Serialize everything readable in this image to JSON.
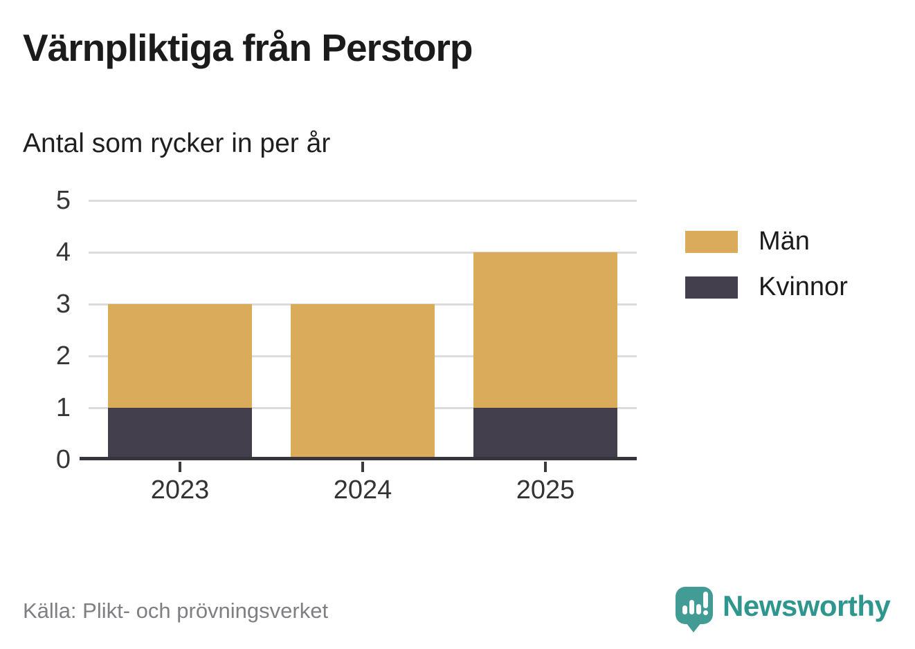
{
  "chart_data": {
    "type": "bar",
    "stacked": true,
    "title": "Värnpliktiga från Perstorp",
    "subtitle": "Antal som rycker in per år",
    "categories": [
      "2023",
      "2024",
      "2025"
    ],
    "series": [
      {
        "name": "Män",
        "color": "#daab5a",
        "values": [
          2,
          3,
          3
        ]
      },
      {
        "name": "Kvinnor",
        "color": "#433f4d",
        "values": [
          1,
          0,
          1
        ]
      }
    ],
    "stack_order_bottom_to_top": [
      "Kvinnor",
      "Män"
    ],
    "ylim": [
      0,
      5
    ],
    "yticks": [
      0,
      1,
      2,
      3,
      4,
      5
    ],
    "xlabel": "",
    "ylabel": "",
    "grid": "horizontal",
    "legend_position": "right"
  },
  "colors": {
    "men_bar": "#daab5a",
    "women_bar": "#433f4d",
    "gridline": "#dcdcdc",
    "axis": "#38343e",
    "brand_teal": "#429c95",
    "brand_text_teal": "#2f968e",
    "title_text": "#1b1b1b",
    "source_text": "#7f7f83"
  },
  "footer": {
    "source": "Källa: Plikt- och prövningsverket",
    "brand": "Newsworthy"
  }
}
